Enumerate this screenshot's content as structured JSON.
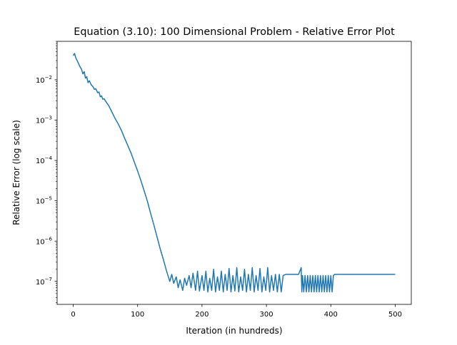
{
  "chart_data": {
    "type": "line",
    "title": "Equation (3.10): 100 Dimensional Problem - Relative Error Plot",
    "xlabel": "Iteration (in hundreds)",
    "ylabel": "Relative Error (log scale)",
    "xlim": [
      -25,
      525
    ],
    "ylim": [
      2.7e-08,
      0.09
    ],
    "yscale": "log",
    "grid": false,
    "line_color": "#1f77b4",
    "xticks": [
      0,
      100,
      200,
      300,
      400,
      500
    ],
    "xtick_labels": [
      "0",
      "100",
      "200",
      "300",
      "400",
      "500"
    ],
    "yticks": [
      1e-07,
      1e-06,
      1e-05,
      0.0001,
      0.001,
      0.01
    ],
    "ytick_labels": [
      {
        "base": "10",
        "exp": "−7"
      },
      {
        "base": "10",
        "exp": "−6"
      },
      {
        "base": "10",
        "exp": "−5"
      },
      {
        "base": "10",
        "exp": "−4"
      },
      {
        "base": "10",
        "exp": "−3"
      },
      {
        "base": "10",
        "exp": "−2"
      }
    ],
    "series": [
      {
        "x": [
          0,
          2,
          4,
          7,
          10,
          13,
          15,
          17,
          19,
          21,
          23,
          25,
          28,
          30,
          33,
          35,
          38,
          40,
          42,
          44,
          46,
          48,
          50,
          55,
          60,
          65,
          70,
          75,
          80,
          85,
          90,
          95,
          100,
          105,
          110,
          115,
          120,
          125,
          130,
          135,
          140,
          145,
          150,
          153,
          156,
          160,
          163,
          166,
          170,
          173,
          176,
          180,
          183,
          186,
          190,
          193,
          196,
          200,
          203,
          206,
          209,
          212,
          215,
          218,
          221,
          224,
          227,
          230,
          233,
          236,
          239,
          242,
          245,
          248,
          251,
          254,
          257,
          260,
          263,
          266,
          269,
          272,
          275,
          278,
          281,
          284,
          287,
          290,
          293,
          296,
          299,
          302,
          305,
          308,
          311,
          314,
          317,
          320,
          323,
          326,
          330,
          335,
          340,
          345,
          350,
          354,
          355,
          356,
          358,
          360,
          362,
          364,
          366,
          368,
          370,
          372,
          374,
          376,
          378,
          380,
          382,
          384,
          386,
          388,
          390,
          392,
          394,
          396,
          398,
          400,
          402,
          404,
          406,
          420,
          450,
          480,
          500
        ],
        "y": [
          0.04,
          0.045,
          0.035,
          0.028,
          0.022,
          0.018,
          0.014,
          0.016,
          0.011,
          0.012,
          0.0085,
          0.0095,
          0.0075,
          0.007,
          0.0058,
          0.006,
          0.0048,
          0.005,
          0.0038,
          0.004,
          0.0033,
          0.0034,
          0.003,
          0.0023,
          0.0016,
          0.0011,
          0.0008,
          0.00055,
          0.00035,
          0.00023,
          0.00015,
          9e-05,
          5.5e-05,
          3.2e-05,
          1.8e-05,
          1e-05,
          5e-06,
          2.6e-06,
          1.3e-06,
          6.5e-07,
          3.5e-07,
          1.8e-07,
          1e-07,
          1.5e-07,
          9e-08,
          1.3e-07,
          7e-08,
          1.1e-07,
          6e-08,
          1.2e-07,
          8e-08,
          1.4e-07,
          7e-08,
          1.6e-07,
          6e-08,
          1.8e-07,
          5.8e-08,
          1.4e-07,
          6e-08,
          1.8e-07,
          5.5e-08,
          1.2e-07,
          6e-08,
          2e-07,
          5.5e-08,
          1.3e-07,
          6e-08,
          1.8e-07,
          5.5e-08,
          1.5e-07,
          6e-08,
          2.1e-07,
          5.5e-08,
          1.4e-07,
          5.8e-08,
          2.2e-07,
          5.5e-08,
          1.3e-07,
          6e-08,
          2e-07,
          5.5e-08,
          1.5e-07,
          6e-08,
          2.2e-07,
          5.5e-08,
          1.4e-07,
          6e-08,
          2.1e-07,
          5.5e-08,
          1.3e-07,
          6e-08,
          2.2e-07,
          5.5e-08,
          1.4e-07,
          6e-08,
          1.5e-07,
          5.5e-08,
          1.5e-07,
          5.5e-08,
          1.4e-07,
          1.5e-07,
          1.5e-07,
          1.5e-07,
          1.5e-07,
          1.5e-07,
          2.2e-07,
          5.5e-08,
          1.4e-07,
          5.5e-08,
          1.4e-07,
          5.5e-08,
          1.4e-07,
          5.5e-08,
          1.4e-07,
          5.5e-08,
          1.4e-07,
          5.5e-08,
          1.4e-07,
          5.5e-08,
          1.4e-07,
          5.5e-08,
          1.4e-07,
          5.5e-08,
          1.4e-07,
          5.5e-08,
          1.4e-07,
          5.5e-08,
          1.4e-07,
          5.5e-08,
          1.4e-07,
          5.5e-08,
          1.4e-07,
          1.5e-07,
          1.5e-07,
          1.5e-07,
          1.5e-07,
          1.5e-07
        ]
      }
    ]
  }
}
